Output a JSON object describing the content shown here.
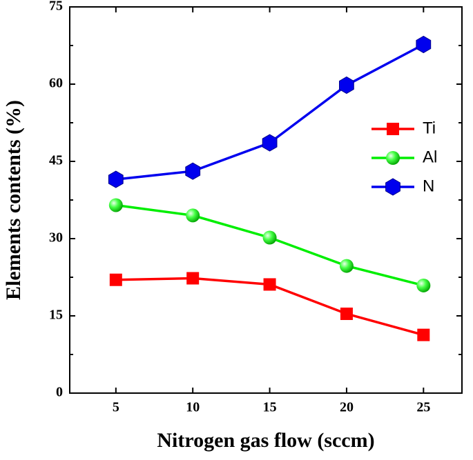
{
  "chart_data": {
    "type": "line",
    "xlabel": "Nitrogen gas flow (sccm)",
    "ylabel": "Elements contents (%)",
    "x": [
      5,
      10,
      15,
      20,
      25
    ],
    "xlim": [
      2,
      27.5
    ],
    "xticks": [
      5,
      10,
      15,
      20,
      25
    ],
    "ylim": [
      0,
      75
    ],
    "yticks": [
      0,
      15,
      30,
      45,
      60,
      75
    ],
    "legend": "upper-right",
    "series": [
      {
        "name": "Ti",
        "color": "#ff0000",
        "marker": "square",
        "values": [
          22.0,
          22.3,
          21.1,
          15.4,
          11.3
        ]
      },
      {
        "name": "Al",
        "color": "#00ee00",
        "marker": "sphere",
        "values": [
          36.5,
          34.5,
          30.2,
          24.7,
          20.9
        ]
      },
      {
        "name": "N",
        "color": "#0000ee",
        "marker": "hexagon",
        "values": [
          41.5,
          43.1,
          48.6,
          59.8,
          67.7
        ]
      }
    ]
  }
}
